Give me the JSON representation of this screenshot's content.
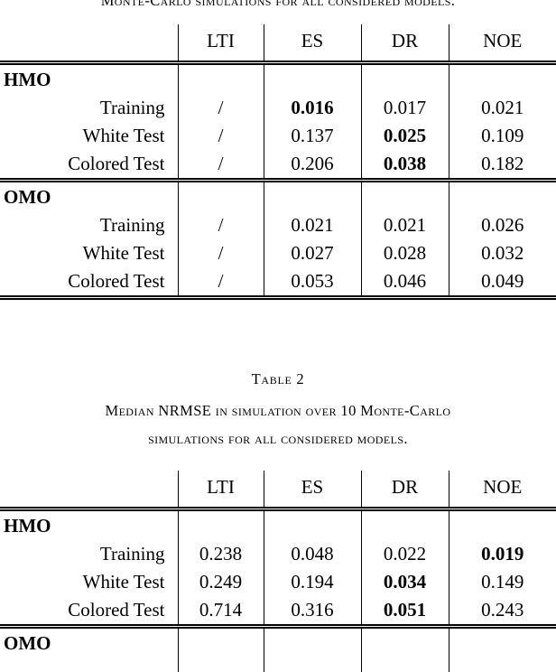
{
  "top_caption": {
    "text": "Monte-Carlo simulations for all considered models."
  },
  "table2_caption": {
    "label": "Table 2",
    "line1": "Median NRMSE in simulation over 10 Monte-Carlo",
    "line2": "simulations for all considered models."
  },
  "tables": [
    {
      "name": "table-1-nrmse",
      "bottom_rule": true,
      "cut_bottom": false,
      "columns": [
        "LTI",
        "ES",
        "DR",
        "NOE"
      ],
      "sections": [
        {
          "header": "HMO",
          "rows": [
            {
              "label": "Training",
              "cells": [
                {
                  "t": "/",
                  "b": false
                },
                {
                  "t": "0.016",
                  "b": true
                },
                {
                  "t": "0.017",
                  "b": false
                },
                {
                  "t": "0.021",
                  "b": false
                }
              ]
            },
            {
              "label": "White Test",
              "cells": [
                {
                  "t": "/",
                  "b": false
                },
                {
                  "t": "0.137",
                  "b": false
                },
                {
                  "t": "0.025",
                  "b": true
                },
                {
                  "t": "0.109",
                  "b": false
                }
              ]
            },
            {
              "label": "Colored Test",
              "cells": [
                {
                  "t": "/",
                  "b": false
                },
                {
                  "t": "0.206",
                  "b": false
                },
                {
                  "t": "0.038",
                  "b": true
                },
                {
                  "t": "0.182",
                  "b": false
                }
              ]
            }
          ]
        },
        {
          "header": "OMO",
          "rows": [
            {
              "label": "Training",
              "cells": [
                {
                  "t": "/",
                  "b": false
                },
                {
                  "t": "0.021",
                  "b": false
                },
                {
                  "t": "0.021",
                  "b": false
                },
                {
                  "t": "0.026",
                  "b": false
                }
              ]
            },
            {
              "label": "White Test",
              "cells": [
                {
                  "t": "/",
                  "b": false
                },
                {
                  "t": "0.027",
                  "b": false
                },
                {
                  "t": "0.028",
                  "b": false
                },
                {
                  "t": "0.032",
                  "b": false
                }
              ]
            },
            {
              "label": "Colored Test",
              "cells": [
                {
                  "t": "/",
                  "b": false
                },
                {
                  "t": "0.053",
                  "b": false
                },
                {
                  "t": "0.046",
                  "b": false
                },
                {
                  "t": "0.049",
                  "b": false
                }
              ]
            }
          ]
        }
      ]
    },
    {
      "name": "table-2-median-nrmse",
      "bottom_rule": false,
      "cut_bottom": true,
      "columns": [
        "LTI",
        "ES",
        "DR",
        "NOE"
      ],
      "sections": [
        {
          "header": "HMO",
          "rows": [
            {
              "label": "Training",
              "cells": [
                {
                  "t": "0.238",
                  "b": false
                },
                {
                  "t": "0.048",
                  "b": false
                },
                {
                  "t": "0.022",
                  "b": false
                },
                {
                  "t": "0.019",
                  "b": true
                }
              ]
            },
            {
              "label": "White Test",
              "cells": [
                {
                  "t": "0.249",
                  "b": false
                },
                {
                  "t": "0.194",
                  "b": false
                },
                {
                  "t": "0.034",
                  "b": true
                },
                {
                  "t": "0.149",
                  "b": false
                }
              ]
            },
            {
              "label": "Colored Test",
              "cells": [
                {
                  "t": "0.714",
                  "b": false
                },
                {
                  "t": "0.316",
                  "b": false
                },
                {
                  "t": "0.051",
                  "b": true
                },
                {
                  "t": "0.243",
                  "b": false
                }
              ]
            }
          ]
        },
        {
          "header": "OMO",
          "rows": []
        }
      ]
    }
  ]
}
